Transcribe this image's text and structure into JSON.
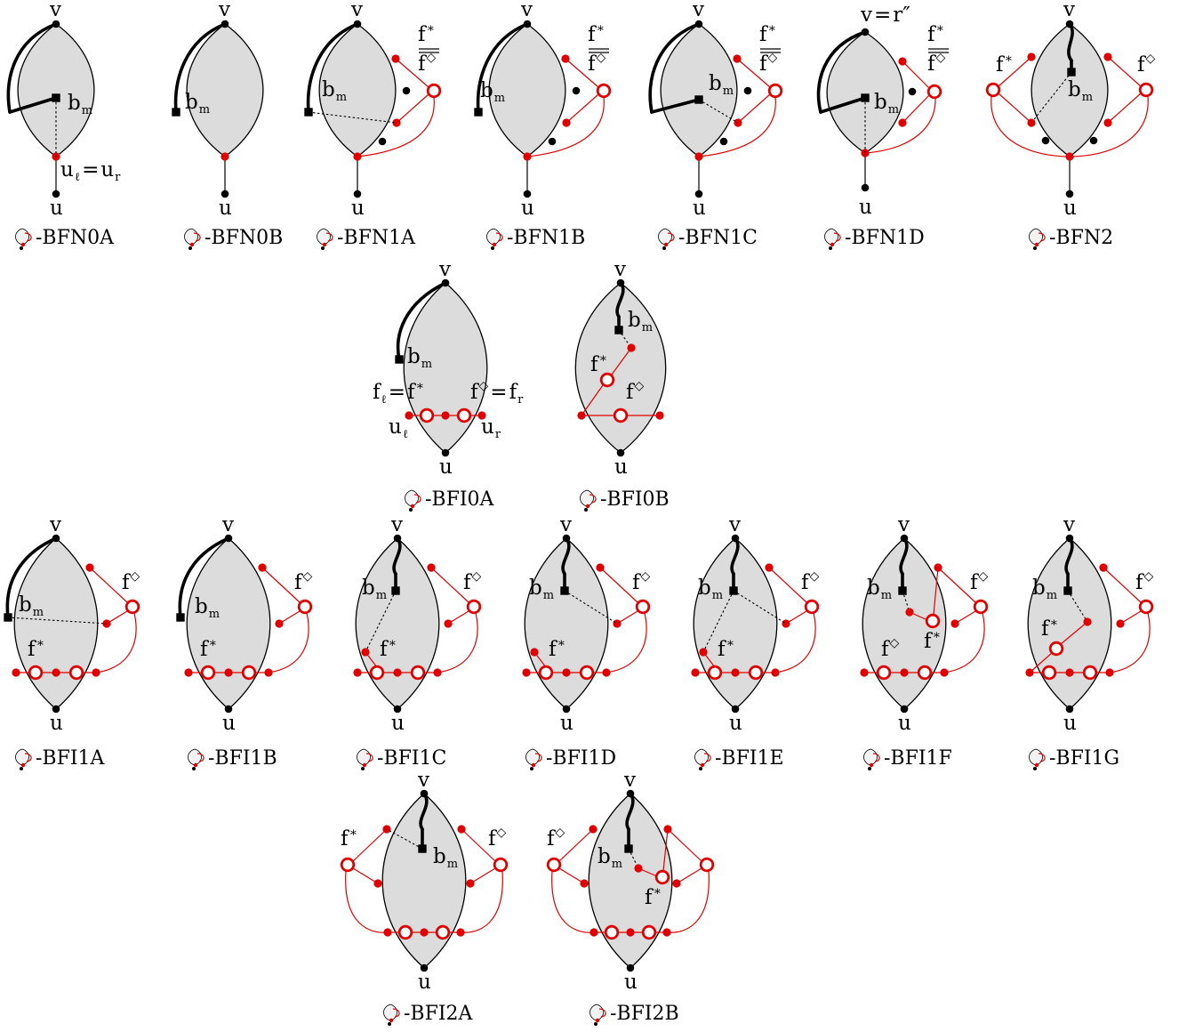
{
  "labels": {
    "v": "v",
    "u": "u",
    "b": "b",
    "m": "m",
    "f": "f",
    "star": "∗",
    "diamond": "◇",
    "ell": "ℓ",
    "r": "r",
    "eq": "=",
    "r_double_prime": "r″"
  },
  "captions": [
    "-BFN0A",
    "-BFN0B",
    "-BFN1A",
    "-BFN1B",
    "-BFN1C",
    "-BFN1D",
    "-BFN2",
    "-BFI0A",
    "-BFI0B",
    "-BFI1A",
    "-BFI1B",
    "-BFI1C",
    "-BFI1D",
    "-BFI1E",
    "-BFI1F",
    "-BFI1G",
    "-BFI2A",
    "-BFI2B"
  ],
  "colors": {
    "face_fill": "#dcdcdc",
    "highlight_red": "#e00000",
    "ink": "#000000"
  },
  "icon_names": [
    "bond-configuration-icon"
  ]
}
